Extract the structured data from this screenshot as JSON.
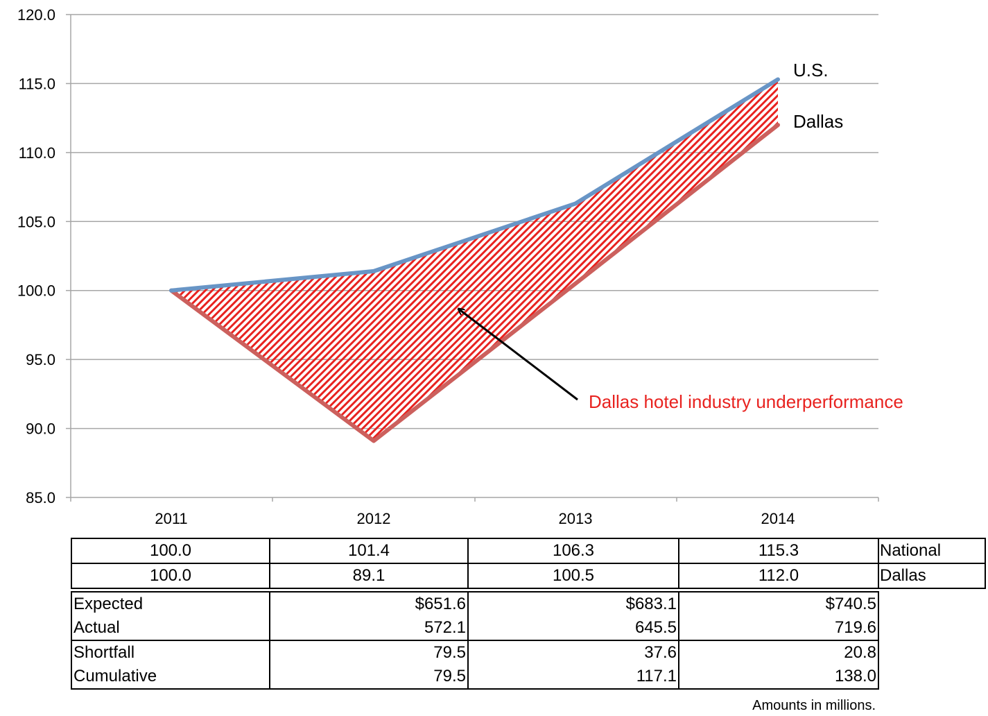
{
  "chart_data": {
    "type": "line",
    "categories": [
      "2011",
      "2012",
      "2013",
      "2014"
    ],
    "series": [
      {
        "name": "U.S.",
        "values": [
          100.0,
          101.4,
          106.3,
          115.3
        ],
        "color": "#6895c6"
      },
      {
        "name": "Dallas",
        "values": [
          100.0,
          89.1,
          100.5,
          112.0
        ],
        "color": "#cc605d"
      }
    ],
    "ylim": [
      85.0,
      120.0
    ],
    "yticks": [
      "85.0",
      "90.0",
      "95.0",
      "100.0",
      "105.0",
      "110.0",
      "115.0",
      "120.0"
    ],
    "grid": true,
    "fill_between": {
      "color": "#e8221f",
      "pattern": "diagonal-hatch"
    },
    "annotation": {
      "text": "Dallas hotel industry underperformance",
      "color": "#e8221f"
    },
    "arrow_color": "#000000"
  },
  "index_table": {
    "rows": [
      {
        "values": [
          "100.0",
          "101.4",
          "106.3",
          "115.3"
        ],
        "label": "National"
      },
      {
        "values": [
          "100.0",
          "89.1",
          "100.5",
          "112.0"
        ],
        "label": "Dallas"
      }
    ]
  },
  "amounts_table": {
    "rows": [
      {
        "label": "Expected",
        "values": [
          "$651.6",
          "$683.1",
          "$740.5"
        ]
      },
      {
        "label": "Actual",
        "values": [
          "572.1",
          "645.5",
          "719.6"
        ]
      },
      {
        "label": "Shortfall",
        "values": [
          "79.5",
          "37.6",
          "20.8"
        ]
      },
      {
        "label": "Cumulative",
        "values": [
          "79.5",
          "117.1",
          "138.0"
        ]
      }
    ]
  },
  "note": "Amounts in millions."
}
